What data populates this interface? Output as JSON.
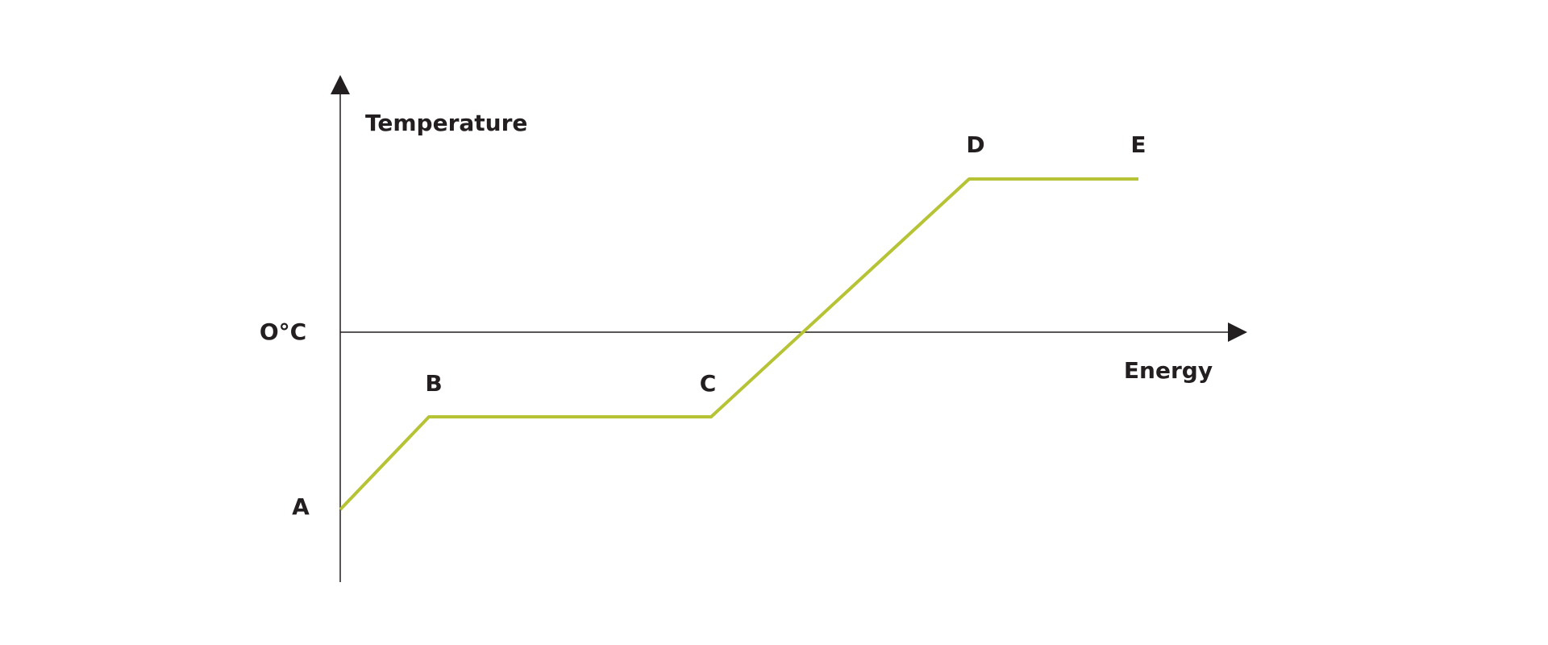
{
  "chart_data": {
    "type": "line",
    "title": "",
    "xlabel": "Energy",
    "ylabel": "Temperature",
    "y_reference_label": "O°C",
    "grid": false,
    "line_color": "#b5c334",
    "axis_color": "#231f20",
    "points": [
      {
        "label": "A",
        "x": 0.0,
        "y": -2.2
      },
      {
        "label": "B",
        "x": 1.1,
        "y": -1.05
      },
      {
        "label": "C",
        "x": 4.6,
        "y": -1.05
      },
      {
        "label": "D",
        "x": 7.8,
        "y": 1.9
      },
      {
        "label": "E",
        "x": 9.9,
        "y": 1.9
      }
    ]
  }
}
